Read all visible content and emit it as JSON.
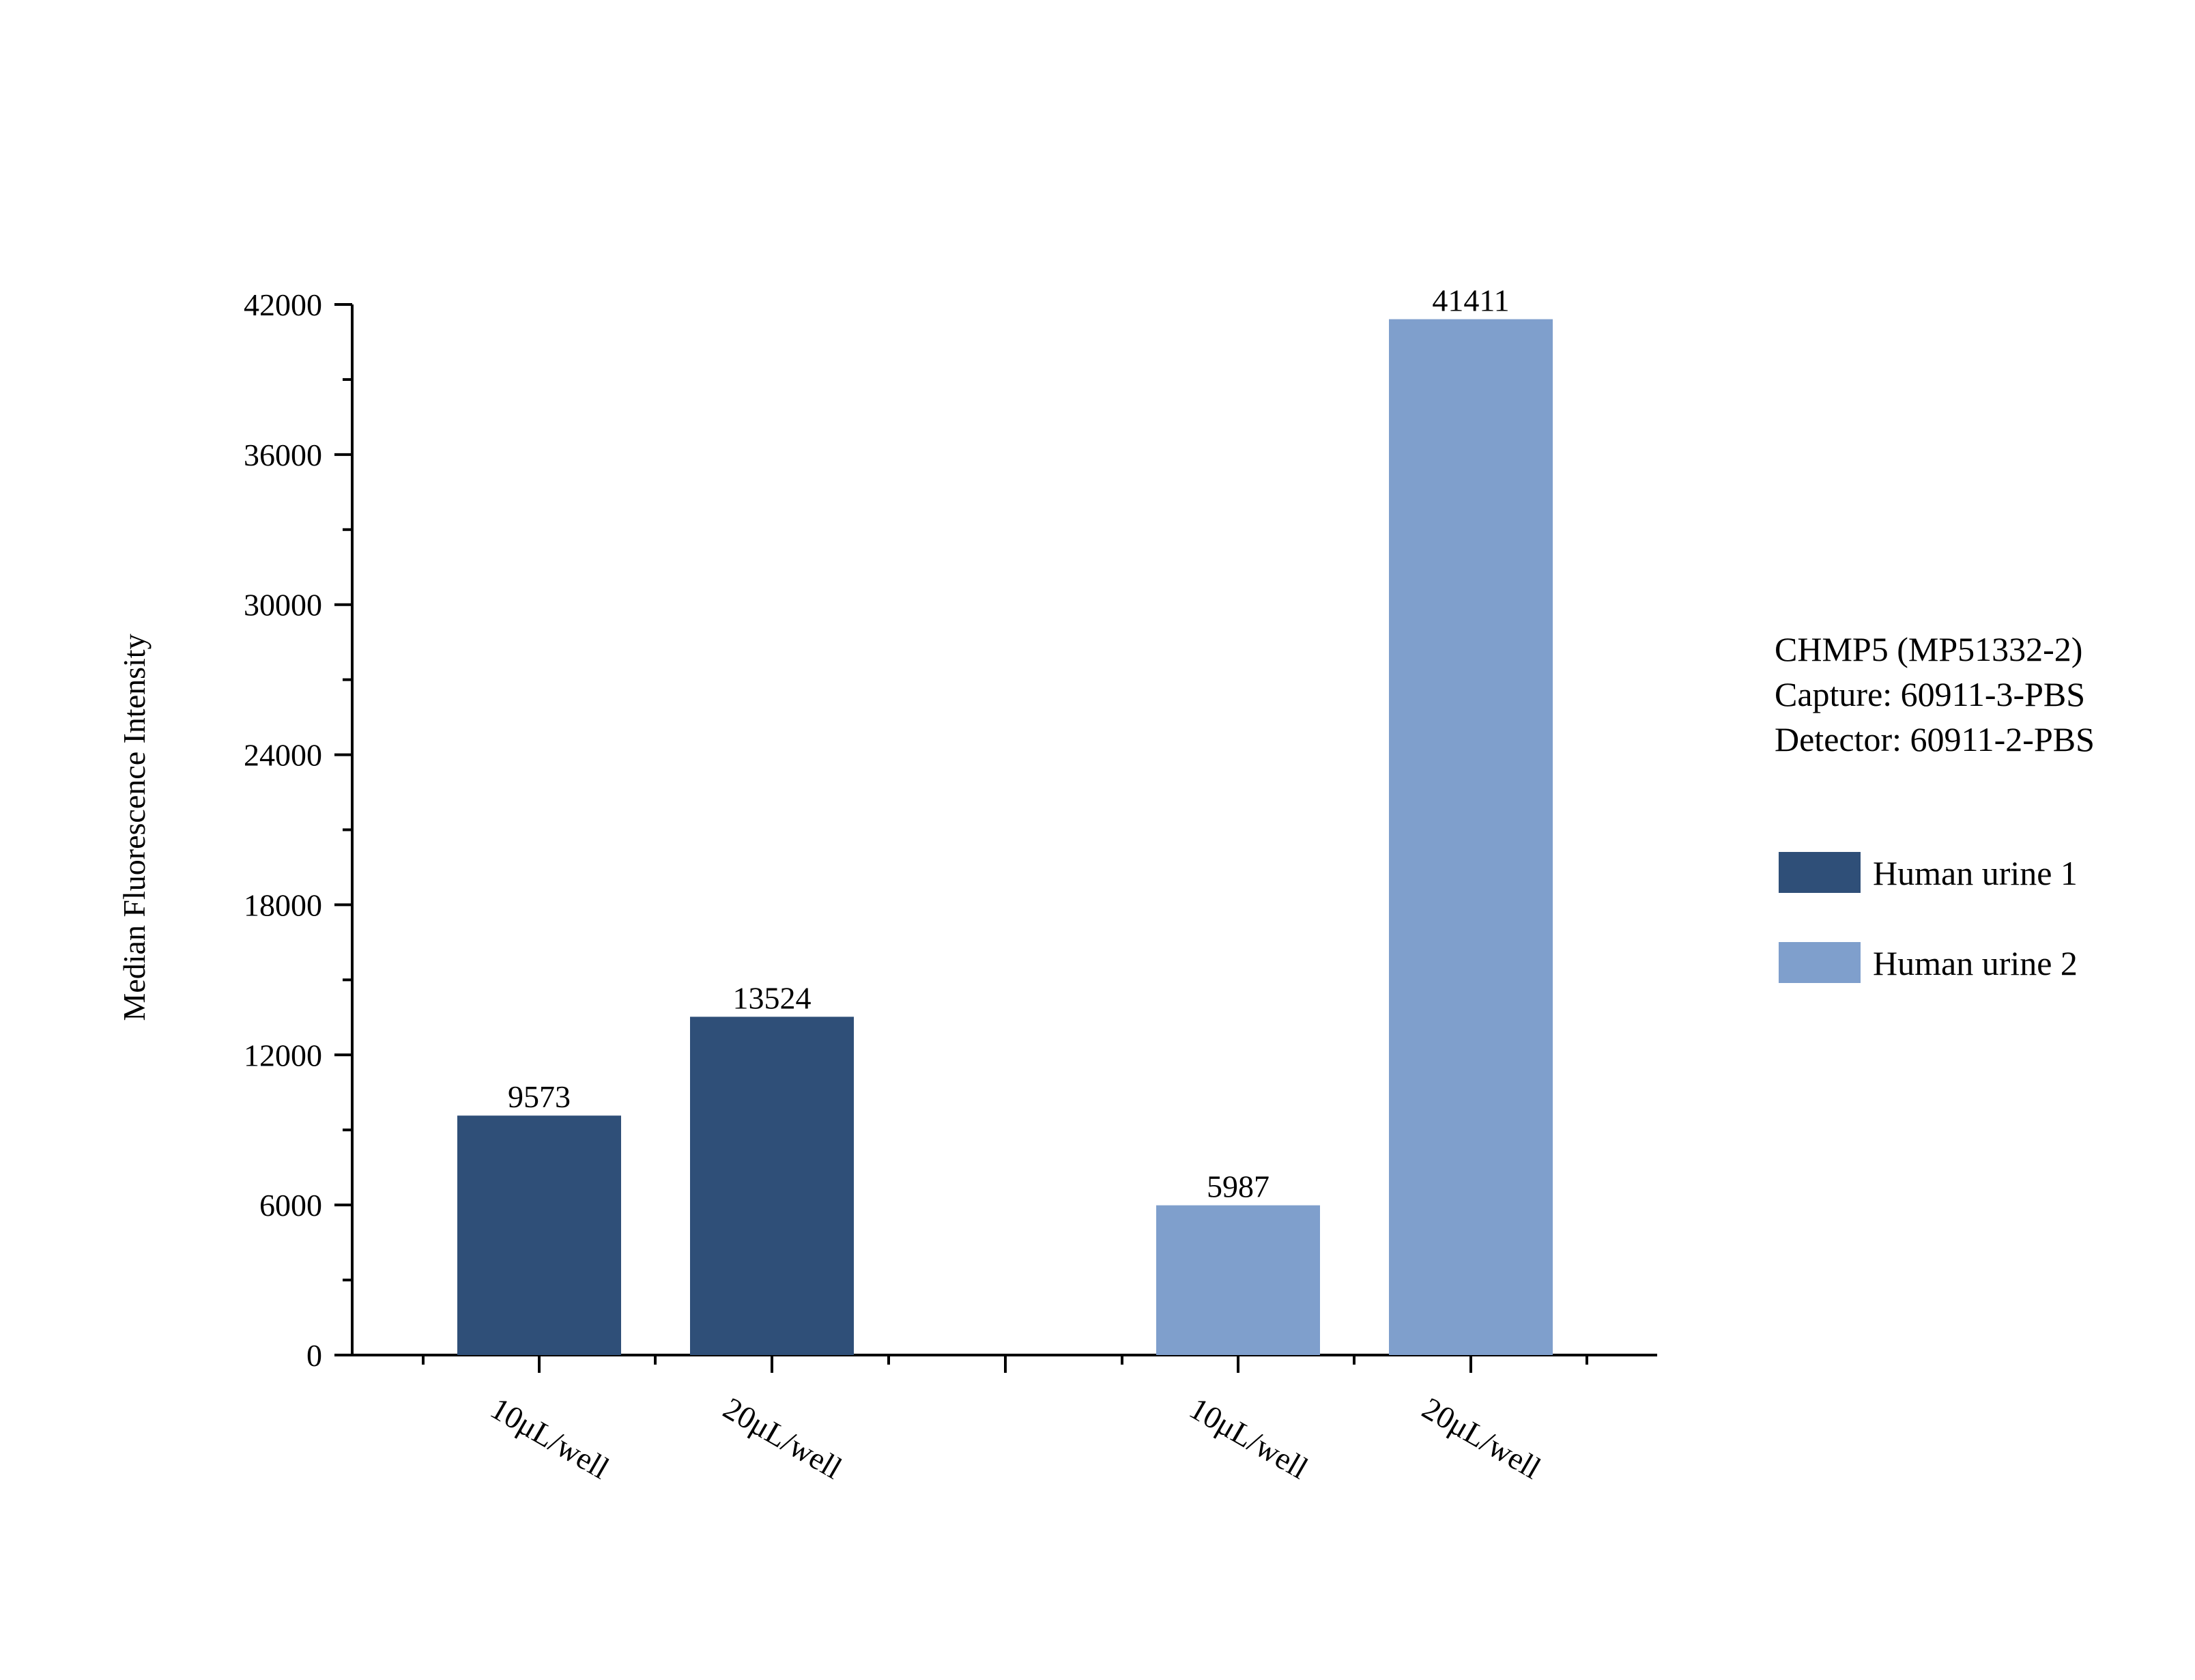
{
  "chart_data": {
    "type": "bar",
    "ylabel": "Median Fluorescence Intensity",
    "ylim": [
      0,
      42000
    ],
    "yticks": [
      0,
      6000,
      12000,
      18000,
      24000,
      30000,
      36000,
      42000
    ],
    "grid": false,
    "legend_position": "right",
    "series": [
      {
        "name": "Human urine 1",
        "color": "#2f4f78",
        "categories": [
          "10μL/well",
          "20μL/well"
        ],
        "values": [
          9573,
          13524
        ]
      },
      {
        "name": "Human urine 2",
        "color": "#7f9fcc",
        "categories": [
          "10μL/well",
          "20μL/well"
        ],
        "values": [
          5987,
          41411
        ]
      }
    ]
  },
  "info": {
    "lines": [
      "CHMP5 (MP51332-2)",
      "Capture: 60911-3-PBS",
      "Detector: 60911-2-PBS"
    ]
  }
}
